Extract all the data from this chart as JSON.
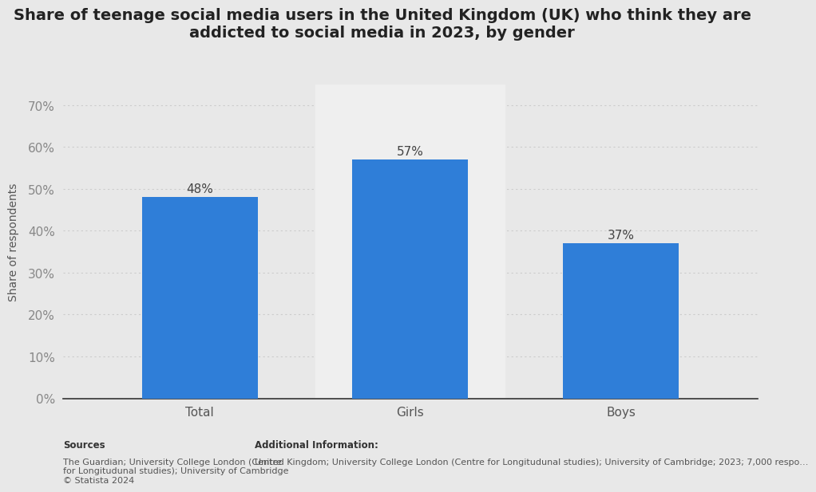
{
  "title": "Share of teenage social media users in the United Kingdom (UK) who think they are\naddicted to social media in 2023, by gender",
  "categories": [
    "Total",
    "Girls",
    "Boys"
  ],
  "values": [
    0.48,
    0.57,
    0.37
  ],
  "bar_labels": [
    "48%",
    "57%",
    "37%"
  ],
  "bar_color": "#2f7ed8",
  "ylabel": "Share of respondents",
  "yticks": [
    0,
    0.1,
    0.2,
    0.3,
    0.4,
    0.5,
    0.6,
    0.7
  ],
  "ytick_labels": [
    "0%",
    "10%",
    "20%",
    "30%",
    "40%",
    "50%",
    "60%",
    "70%"
  ],
  "ylim": [
    0,
    0.75
  ],
  "background_color": "#e8e8e8",
  "plot_background_color": "#e8e8e8",
  "col_highlight_color": "#efefef",
  "grid_color": "#cccccc",
  "title_fontsize": 14,
  "label_fontsize": 11,
  "tick_fontsize": 11,
  "ylabel_fontsize": 10,
  "sources_bold": "Sources",
  "sources_body": "The Guardian; University College London (Centre\nfor Longitudunal studies); University of Cambridge\n© Statista 2024",
  "additional_bold": "Additional Information:",
  "additional_body": "United Kingdom; University College London (Centre for Longitudunal studies); University of Cambridge; 2023; 7,000 respo…",
  "bar_width": 0.55,
  "highlighted_bar_index": 1
}
